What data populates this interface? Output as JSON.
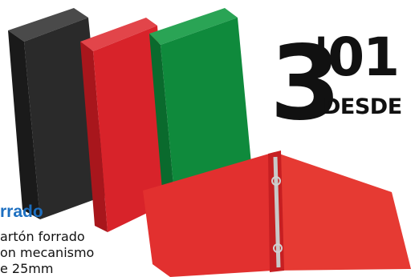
{
  "price": {
    "integer": "3",
    "decimal": "'01",
    "label": "DESDE"
  },
  "product": {
    "title": "rrado",
    "description": [
      "artón forrado",
      "on mecanismo",
      "e 25mm"
    ]
  },
  "colors": {
    "black_binder": "#2a2a2a",
    "red_binder": "#d8232a",
    "green_binder": "#0f8a3c",
    "title_blue": "#1d6fc0"
  }
}
